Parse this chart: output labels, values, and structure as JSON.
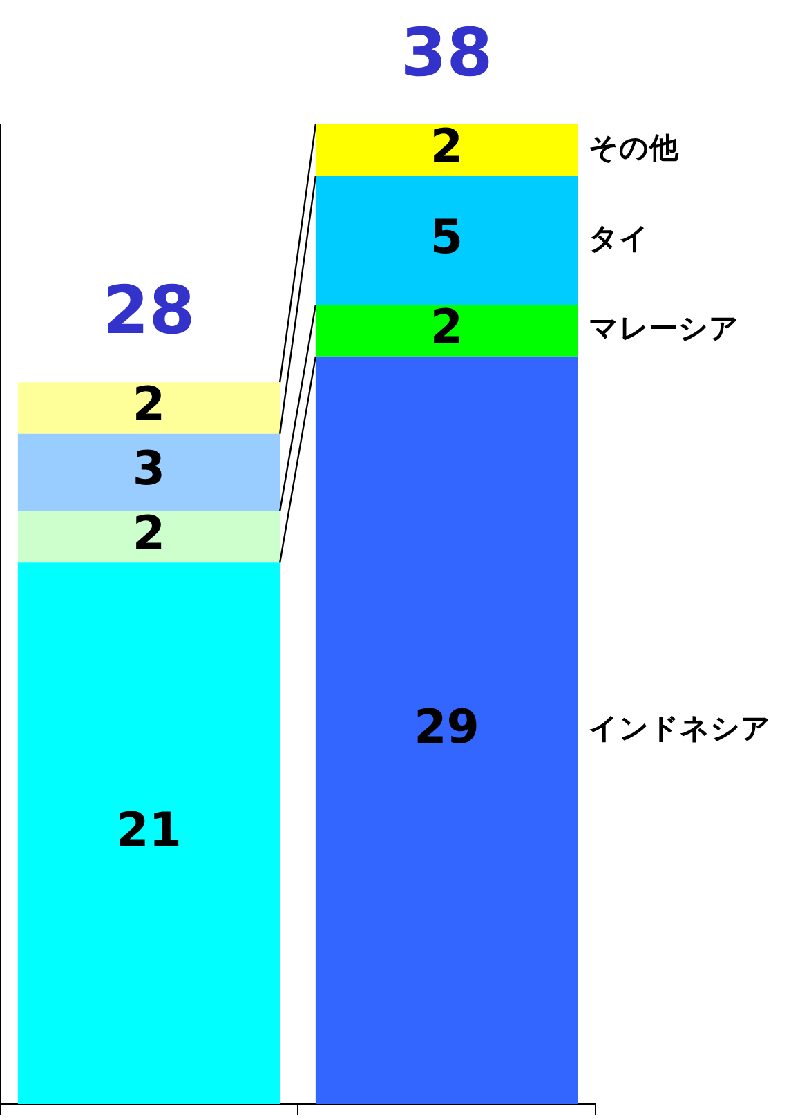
{
  "chart_data": {
    "type": "bar",
    "stacked": true,
    "categories": [
      null,
      null
    ],
    "series": [
      {
        "name": "インドネシア",
        "colors": [
          "#00ffff",
          "#3366ff"
        ],
        "values": [
          21,
          29
        ]
      },
      {
        "name": "マレーシア",
        "colors": [
          "#ccffcc",
          "#00ff00"
        ],
        "values": [
          2,
          2
        ]
      },
      {
        "name": "タイ",
        "colors": [
          "#99ccff",
          "#00ccff"
        ],
        "values": [
          3,
          5
        ]
      },
      {
        "name": "その他",
        "colors": [
          "#ffff99",
          "#ffff00"
        ],
        "values": [
          2,
          2
        ]
      }
    ],
    "data_labels": true,
    "totals": [
      "28",
      "38"
    ],
    "legend": false
  }
}
